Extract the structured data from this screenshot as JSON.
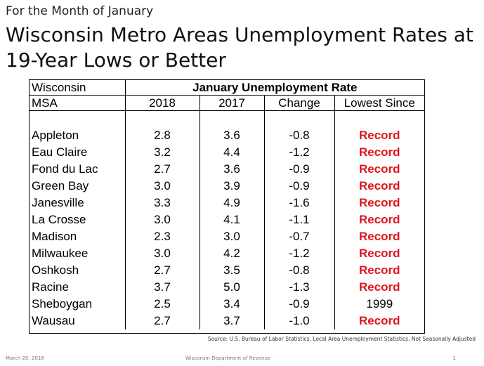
{
  "slide": {
    "subtitle": "For the Month of January",
    "title": "Wisconsin Metro Areas Unemployment Rates at 19-Year Lows or Better"
  },
  "table": {
    "corner_label_line1": "Wisconsin",
    "corner_label_line2": "MSA",
    "group_header": "January Unemployment Rate",
    "columns": [
      "2018",
      "2017",
      "Change",
      "Lowest Since"
    ],
    "rows": [
      {
        "msa": "Appleton",
        "y2018": "2.8",
        "y2017": "3.6",
        "change": "-0.8",
        "lowest": "Record"
      },
      {
        "msa": "Eau Claire",
        "y2018": "3.2",
        "y2017": "4.4",
        "change": "-1.2",
        "lowest": "Record"
      },
      {
        "msa": "Fond du Lac",
        "y2018": "2.7",
        "y2017": "3.6",
        "change": "-0.9",
        "lowest": "Record"
      },
      {
        "msa": "Green Bay",
        "y2018": "3.0",
        "y2017": "3.9",
        "change": "-0.9",
        "lowest": "Record"
      },
      {
        "msa": "Janesville",
        "y2018": "3.3",
        "y2017": "4.9",
        "change": "-1.6",
        "lowest": "Record"
      },
      {
        "msa": "La Crosse",
        "y2018": "3.0",
        "y2017": "4.1",
        "change": "-1.1",
        "lowest": "Record"
      },
      {
        "msa": "Madison",
        "y2018": "2.3",
        "y2017": "3.0",
        "change": "-0.7",
        "lowest": "Record"
      },
      {
        "msa": "Milwaukee",
        "y2018": "3.0",
        "y2017": "4.2",
        "change": "-1.2",
        "lowest": "Record"
      },
      {
        "msa": "Oshkosh",
        "y2018": "2.7",
        "y2017": "3.5",
        "change": "-0.8",
        "lowest": "Record"
      },
      {
        "msa": "Racine",
        "y2018": "3.7",
        "y2017": "5.0",
        "change": "-1.3",
        "lowest": "Record"
      },
      {
        "msa": "Sheboygan",
        "y2018": "2.5",
        "y2017": "3.4",
        "change": "-0.9",
        "lowest": "1999"
      },
      {
        "msa": "Wausau",
        "y2018": "2.7",
        "y2017": "3.7",
        "change": "-1.0",
        "lowest": "Record"
      }
    ]
  },
  "source": "Source:  U.S. Bureau of Labor Statistics, Local Area Unemployment Statistics, Not Seasonally Adjusted",
  "footer": {
    "date": "March 20, 2018",
    "department": "Wisconsin Department of Revenue",
    "page_number": "1"
  },
  "colors": {
    "record_highlight": "#e0141e"
  }
}
